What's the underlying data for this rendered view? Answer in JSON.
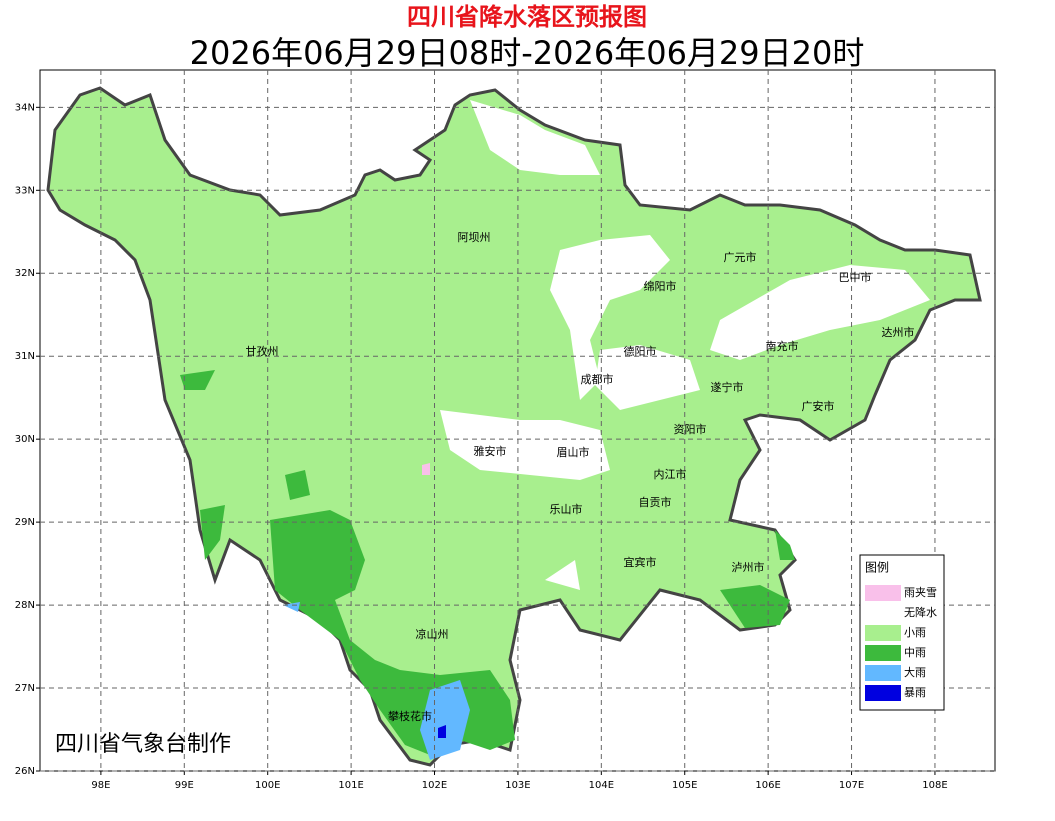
{
  "header": {
    "title": "四川省降水落区预报图",
    "subtitle": "2026年06月29日08时-2026年06月29日20时"
  },
  "map": {
    "lonlim": [
      97.27,
      108.72
    ],
    "latlim": [
      26,
      34.45
    ],
    "lonticks": [
      {
        "value": 98,
        "label": "98E"
      },
      {
        "value": 99,
        "label": "99E"
      },
      {
        "value": 100,
        "label": "100E"
      },
      {
        "value": 101,
        "label": "101E"
      },
      {
        "value": 102,
        "label": "102E"
      },
      {
        "value": 103,
        "label": "103E"
      },
      {
        "value": 104,
        "label": "104E"
      },
      {
        "value": 105,
        "label": "105E"
      },
      {
        "value": 106,
        "label": "106E"
      },
      {
        "value": 107,
        "label": "107E"
      },
      {
        "value": 108,
        "label": "108E"
      }
    ],
    "latticks": [
      {
        "value": 26,
        "label": "26N"
      },
      {
        "value": 27,
        "label": "27N"
      },
      {
        "value": 28,
        "label": "28N"
      },
      {
        "value": 29,
        "label": "29N"
      },
      {
        "value": 30,
        "label": "30N"
      },
      {
        "value": 31,
        "label": "31N"
      },
      {
        "value": 32,
        "label": "32N"
      },
      {
        "value": 33,
        "label": "33N"
      },
      {
        "value": 34,
        "label": "34N"
      }
    ],
    "grid": true,
    "places": [
      "阿坝州",
      "广元市",
      "巴中市",
      "绵阳市",
      "达州市",
      "甘孜州",
      "德阳市",
      "南充市",
      "成都市",
      "遂宁市",
      "广安市",
      "资阳市",
      "雅安市",
      "眉山市",
      "内江市",
      "乐山市",
      "自贡市",
      "宜宾市",
      "泸州市",
      "凉山州",
      "攀枝花市"
    ]
  },
  "legend": {
    "title": "图例",
    "items": [
      {
        "label": "雨夹雪",
        "color": "#f9c0ea"
      },
      {
        "label": "无降水",
        "color": "#ffffff"
      },
      {
        "label": "小雨",
        "color": "#a8ef8e"
      },
      {
        "label": "中雨",
        "color": "#3dba3d"
      },
      {
        "label": "大雨",
        "color": "#62b8ff"
      },
      {
        "label": "暴雨",
        "color": "#0000e0"
      }
    ]
  },
  "footer": {
    "credit": "四川省气象台制作"
  }
}
